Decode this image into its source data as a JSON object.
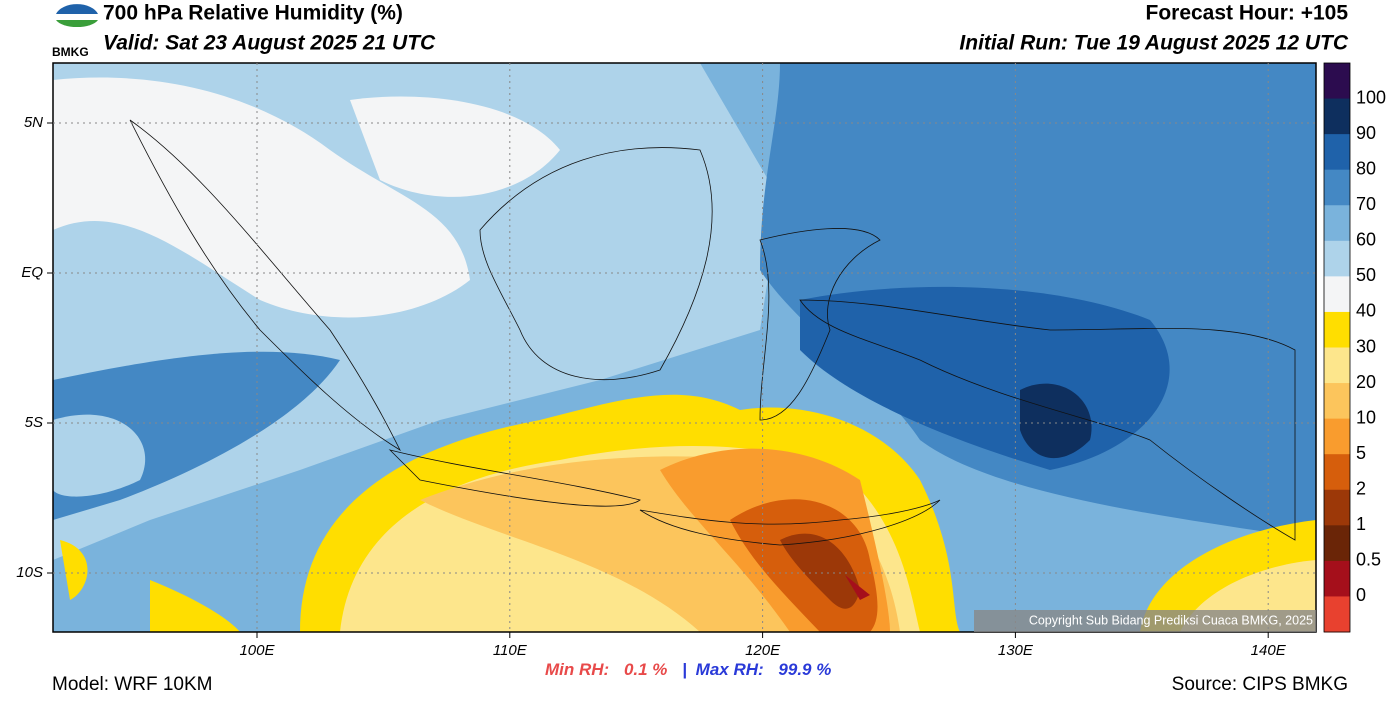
{
  "header": {
    "title": "700 hPa Relative Humidity (%)",
    "valid": "Valid: Sat 23 August 2025 21 UTC",
    "forecast_hour": "Forecast Hour: +105",
    "initial_run": "Initial Run: Tue 19 August 2025 12 UTC",
    "logo_text": "BMKG"
  },
  "map": {
    "lat_labels": [
      "5N",
      "EQ",
      "5S",
      "10S"
    ],
    "lon_labels": [
      "100E",
      "110E",
      "120E",
      "130E",
      "140E"
    ],
    "copyright": "Copyright Sub Bidang Prediksi Cuaca BMKG, 2025"
  },
  "colorbar": {
    "levels": [
      100,
      90,
      80,
      70,
      60,
      50,
      40,
      30,
      20,
      10,
      5,
      2,
      1,
      0.5,
      0
    ],
    "colors": [
      "#2c0c4f",
      "#0e2f5e",
      "#1f62aa",
      "#4488c4",
      "#7ab3dc",
      "#aed3ea",
      "#f4f5f6",
      "#ffde00",
      "#fde68c",
      "#fcc55c",
      "#f99c2e",
      "#d65e0c",
      "#9c3808",
      "#6a2507",
      "#a50f1b",
      "#e8412f"
    ]
  },
  "footer": {
    "model": "Model: WRF 10KM",
    "source": "Source: CIPS BMKG",
    "min_label": "Min RH:",
    "min_value": "0.1 %",
    "separator": "|",
    "max_label": "Max RH:",
    "max_value": "99.9 %"
  }
}
